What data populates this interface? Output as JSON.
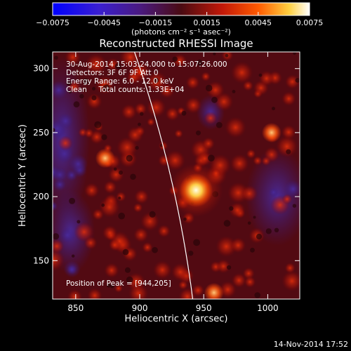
{
  "chart_data": {
    "type": "heatmap",
    "title": "Reconstructed RHESSI Image",
    "xlabel": "Heliocentric X (arcsec)",
    "ylabel": "Heliocentric Y (arcsec)",
    "xlim": [
      832,
      1025
    ],
    "ylim": [
      120,
      313
    ],
    "x_ticks": [
      850,
      900,
      950,
      1000
    ],
    "y_ticks": [
      150,
      200,
      250,
      300
    ],
    "x_tick_labels": [
      "850",
      "900",
      "950",
      "1000"
    ],
    "y_tick_labels": [
      "150",
      "200",
      "250",
      "300"
    ],
    "colorbar": {
      "range": [
        -0.0075,
        0.0075
      ],
      "ticks": [
        -0.0075,
        -0.0045,
        -0.0015,
        0.0015,
        0.0045,
        0.0075
      ],
      "tick_labels": [
        "−0.0075",
        "−0.0045",
        "−0.0015",
        "0.0015",
        "0.0045",
        "0.0075"
      ],
      "unit_label": "(photons cm⁻² s⁻¹ asec⁻²)",
      "colormap": "blue-purple-red-yellow-white"
    },
    "annotations": [
      "30-Aug-2014 15:03:24.000 to 15:07:26.000",
      "Detectors: 3F 6F 9F  Att 0",
      "Energy Range: 6.0 - 12.0 keV",
      "Clean     Total counts: 1.33E+04"
    ],
    "peak": {
      "label": "Position of Peak = [944,205]",
      "x": 944,
      "y": 205
    },
    "secondary_sources": [
      {
        "x": 873,
        "y": 230
      },
      {
        "x": 1003,
        "y": 250
      },
      {
        "x": 958,
        "y": 125
      }
    ],
    "limb_arc": {
      "center": [
        0,
        0
      ],
      "radius_arcsec": 949
    }
  },
  "footer": {
    "date": "14-Nov-2014 17:52"
  }
}
